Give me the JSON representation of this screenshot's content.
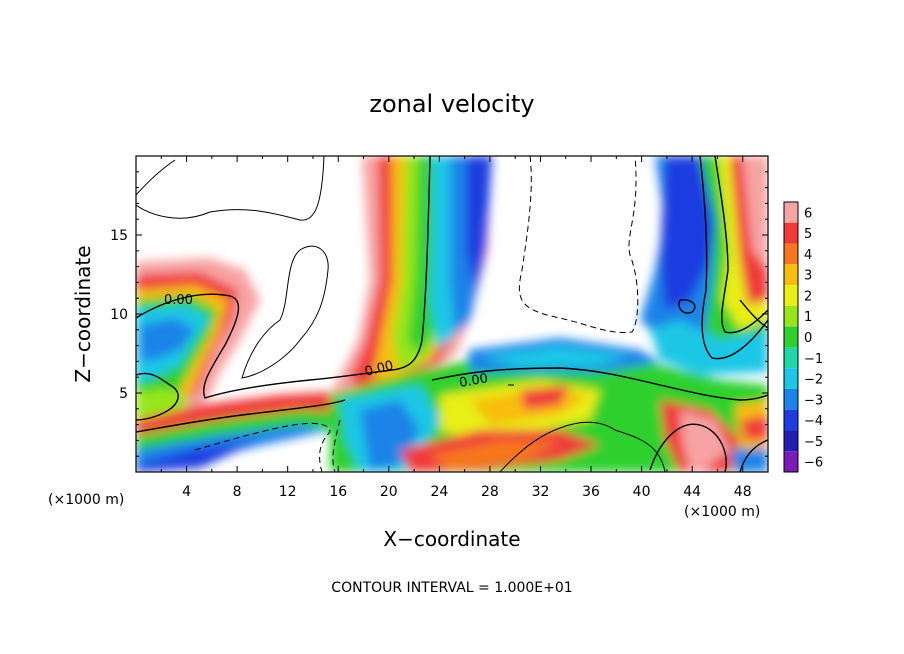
{
  "chart_data": {
    "type": "heatmap",
    "title": "zonal velocity",
    "xlabel": "X−coordinate",
    "ylabel": "Z−coordinate",
    "x_unit_left": "(×1000 m)",
    "x_unit_right": "(×1000 m)",
    "xlim": [
      0,
      50
    ],
    "ylim": [
      0,
      20
    ],
    "x_ticks": [
      4,
      8,
      12,
      16,
      20,
      24,
      28,
      32,
      36,
      40,
      44,
      48
    ],
    "y_ticks": [
      5,
      10,
      15
    ],
    "colorbar": {
      "min": -6,
      "max": 6,
      "levels": [
        6,
        5,
        4,
        3,
        2,
        1,
        0,
        -1,
        -2,
        -3,
        -4,
        -5,
        -6
      ],
      "colors": [
        "#f7a3a3",
        "#f03a3a",
        "#f7771f",
        "#f8bd10",
        "#e8ef12",
        "#96e61a",
        "#2fd02d",
        "#20d6a6",
        "#1cc7e6",
        "#1e83e8",
        "#1f3ce0",
        "#2020b0",
        "#7a1ab8"
      ]
    },
    "contour_labels": [
      "0.00",
      "0.00",
      "0.00"
    ],
    "footer": "CONTOUR INTERVAL = 1.000E+01"
  }
}
